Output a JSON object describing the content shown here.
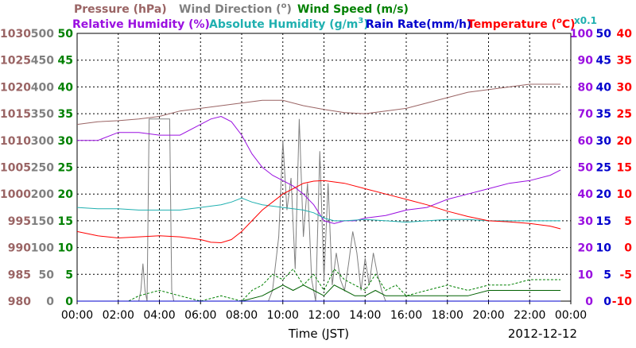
{
  "chart_data": {
    "type": "line",
    "date": "2012-12-12",
    "xlabel": "Time (JST)",
    "x_ticks": [
      "00:00",
      "02:00",
      "04:00",
      "06:00",
      "08:00",
      "10:00",
      "12:00",
      "14:00",
      "16:00",
      "18:00",
      "20:00",
      "22:00",
      "00:00"
    ],
    "grid": true,
    "legend_row1": [
      {
        "text": "Pressure (hPa)",
        "color": "#9a6464"
      },
      {
        "text": "Wind Direction (",
        "sup": "o",
        "tail": ")",
        "color": "#808080"
      },
      {
        "text": "Wind Speed (m/s)",
        "color": "#008000"
      }
    ],
    "legend_row2": [
      {
        "text": "Relative Humidity (%)",
        "color": "#9a10e0"
      },
      {
        "text": "Absolute Humidity (g/m",
        "sup": "3",
        "tail": ")",
        "color": "#20b0b0"
      },
      {
        "text": "Rain Rate(mm/h)",
        "color": "#0000cc"
      },
      {
        "text": "Temperature (",
        "sup": "o",
        "tail": "C)",
        "color": "#ff0000"
      }
    ],
    "scale_note": "x0.1",
    "axes": {
      "pressure": {
        "color": "#9a6464",
        "ticks": [
          "1030",
          "1025",
          "1020",
          "1015",
          "1010",
          "1005",
          "1000",
          "995",
          "990",
          "985",
          "980"
        ],
        "range": [
          980,
          1030
        ]
      },
      "wind_direction": {
        "color": "#808080",
        "ticks": [
          "500",
          "450",
          "400",
          "350",
          "300",
          "250",
          "200",
          "150",
          "100",
          "50",
          "0"
        ],
        "range": [
          0,
          500
        ]
      },
      "wind_speed": {
        "color": "#008000",
        "ticks": [
          "50",
          "45",
          "40",
          "35",
          "30",
          "25",
          "20",
          "15",
          "10",
          "5",
          "0"
        ],
        "range": [
          0,
          50
        ]
      },
      "humidity": {
        "color": "#9a10e0",
        "ticks": [
          "100",
          "90",
          "80",
          "70",
          "60",
          "50",
          "40",
          "30",
          "20",
          "10",
          "0"
        ],
        "range": [
          0,
          100
        ]
      },
      "rain": {
        "color": "#0000cc",
        "ticks": [
          "50",
          "45",
          "40",
          "35",
          "30",
          "25",
          "20",
          "15",
          "10",
          "5",
          "0"
        ],
        "range": [
          0,
          50
        ]
      },
      "temperature": {
        "color": "#ff0000",
        "ticks": [
          "40",
          "35",
          "30",
          "25",
          "20",
          "15",
          "10",
          "5",
          "0",
          "-5",
          "-10"
        ],
        "range": [
          -10,
          40
        ]
      }
    },
    "series": [
      {
        "name": "Pressure (hPa)",
        "axis": "pressure",
        "color": "#9a6464",
        "x": [
          0,
          1,
          2,
          3,
          4,
          5,
          6,
          7,
          8,
          9,
          10,
          11,
          12,
          13,
          14,
          15,
          16,
          17,
          18,
          19,
          20,
          21,
          22,
          23.5
        ],
        "y": [
          1013,
          1013.5,
          1013.7,
          1014,
          1014.5,
          1015.5,
          1016,
          1016.5,
          1017,
          1017.5,
          1017.5,
          1016.5,
          1015.8,
          1015.2,
          1015,
          1015.5,
          1016,
          1017,
          1018,
          1019,
          1019.5,
          1020,
          1020.5,
          1020.5
        ]
      },
      {
        "name": "Wind Direction",
        "axis": "wind_direction",
        "color": "#808080",
        "x": [
          0,
          3.0,
          3.1,
          3.2,
          3.3,
          3.4,
          3.5,
          3.6,
          4.5,
          4.6,
          4.7,
          4.8,
          5.0,
          9.0,
          9.3,
          9.5,
          9.8,
          10.0,
          10.2,
          10.4,
          10.6,
          10.8,
          11.0,
          11.2,
          11.4,
          11.6,
          11.8,
          12.0,
          12.2,
          12.4,
          12.6,
          12.8,
          13.0,
          13.2,
          13.4,
          13.6,
          13.8,
          14.0,
          14.2,
          14.4,
          14.6,
          14.8,
          15.0,
          23.5
        ],
        "y": [
          0,
          0,
          20,
          70,
          20,
          0,
          340,
          340,
          340,
          20,
          0,
          0,
          0,
          0,
          0,
          20,
          120,
          300,
          170,
          230,
          60,
          340,
          120,
          220,
          40,
          0,
          280,
          40,
          220,
          30,
          90,
          40,
          20,
          70,
          130,
          90,
          20,
          80,
          30,
          90,
          50,
          20,
          0,
          0
        ]
      },
      {
        "name": "Wind Speed",
        "axis": "wind_speed",
        "color": "#008000",
        "dashed": true,
        "x": [
          0,
          2.5,
          3,
          4,
          5,
          6,
          7,
          8,
          8.5,
          9,
          9.5,
          10,
          10.5,
          11,
          11.5,
          12,
          12.5,
          13,
          13.5,
          14,
          14.5,
          15,
          15.5,
          16,
          17,
          18,
          19,
          20,
          21,
          22,
          23.5
        ],
        "y": [
          0,
          0,
          1,
          2,
          1,
          0,
          1,
          0,
          2,
          3,
          5,
          4,
          6,
          3,
          5,
          2,
          6,
          4,
          3,
          2,
          5,
          2,
          3,
          1,
          2,
          3,
          2,
          3,
          3,
          4,
          4
        ]
      },
      {
        "name": "Wind Speed (mean)",
        "axis": "wind_speed",
        "color": "#006000",
        "x": [
          0,
          3,
          4,
          5,
          6,
          7,
          8,
          9,
          9.5,
          10,
          10.5,
          11,
          11.5,
          12,
          12.5,
          13,
          13.5,
          14,
          14.5,
          15,
          16,
          17,
          18,
          19,
          20,
          21,
          22,
          23.5
        ],
        "y": [
          0,
          0,
          0,
          0,
          0,
          0,
          0,
          1,
          2,
          3,
          2,
          3,
          2,
          1,
          3,
          2,
          1,
          1,
          2,
          1,
          1,
          1,
          1,
          1,
          2,
          2,
          2,
          2
        ]
      },
      {
        "name": "Relative Humidity (%)",
        "axis": "humidity",
        "color": "#9a10e0",
        "x": [
          0,
          1,
          2,
          3,
          4,
          5,
          6,
          6.5,
          7,
          7.5,
          8,
          8.5,
          9,
          9.5,
          10,
          10.5,
          11,
          11.5,
          12,
          12.5,
          13,
          13.5,
          14,
          15,
          16,
          17,
          18,
          19,
          20,
          21,
          22,
          23,
          23.5
        ],
        "y": [
          60,
          60,
          63,
          63,
          62,
          62,
          66,
          68,
          69,
          67,
          62,
          55,
          50,
          47,
          45,
          43,
          40,
          36,
          30,
          29,
          30,
          30,
          31,
          32,
          34,
          35,
          38,
          40,
          42,
          44,
          45,
          47,
          49
        ]
      },
      {
        "name": "Absolute Humidity (g/m3) x0.1",
        "axis": "humidity",
        "color": "#20b0b0",
        "x": [
          0,
          1,
          2,
          3,
          4,
          5,
          6,
          7,
          7.5,
          8,
          8.5,
          9,
          10,
          11,
          11.5,
          12,
          12.5,
          13,
          14,
          15,
          16,
          17,
          18,
          19,
          20,
          21,
          22,
          23,
          23.5
        ],
        "y": [
          35,
          34.5,
          34.5,
          34,
          34,
          34,
          35,
          36,
          37,
          38.5,
          37,
          36,
          35,
          34,
          33,
          31,
          30,
          30,
          30.5,
          30,
          29.5,
          30,
          30.5,
          30.5,
          30,
          30,
          30,
          30,
          30
        ]
      },
      {
        "name": "Rain Rate(mm/h)",
        "axis": "rain",
        "color": "#0000cc",
        "x": [
          0,
          23.5
        ],
        "y": [
          0,
          0
        ]
      },
      {
        "name": "Temperature (C)",
        "axis": "temperature",
        "color": "#ff0000",
        "x": [
          0,
          1,
          2,
          3,
          4,
          5,
          6,
          6.5,
          7,
          7.5,
          8,
          8.5,
          9,
          9.5,
          10,
          10.5,
          11,
          11.5,
          12,
          13,
          14,
          15,
          16,
          17,
          18,
          19,
          20,
          21,
          22,
          23,
          23.5
        ],
        "y": [
          3,
          2.2,
          1.8,
          2,
          2.2,
          2,
          1.5,
          1,
          0.9,
          1.5,
          3,
          5,
          7,
          8.5,
          10,
          11,
          12,
          12.4,
          12.5,
          12,
          11,
          10,
          9,
          8,
          6.8,
          5.8,
          5,
          4.8,
          4.5,
          4,
          3.5
        ]
      }
    ]
  }
}
